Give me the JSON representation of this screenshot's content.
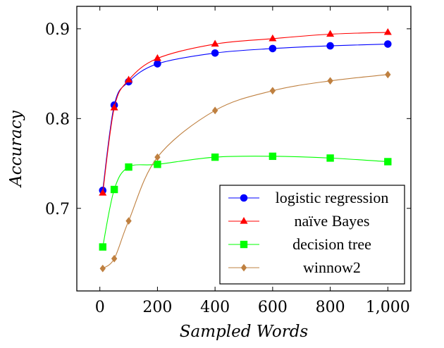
{
  "chart_data": {
    "type": "line",
    "xlabel": "Sampled Words",
    "ylabel": "Accuracy",
    "xlim": [
      -80,
      1080
    ],
    "ylim": [
      0.608,
      0.925
    ],
    "x_ticks": [
      0,
      200,
      400,
      600,
      800,
      1000
    ],
    "x_tick_labels": [
      "0",
      "200",
      "400",
      "600",
      "800",
      "1,000"
    ],
    "y_ticks": [
      0.7,
      0.8,
      0.9
    ],
    "y_tick_labels": [
      "0.7",
      "0.8",
      "0.9"
    ],
    "grid": false,
    "legend_position": "bottom-right",
    "series": [
      {
        "name": "logistic regression",
        "color": "#0000ff",
        "marker": "circle",
        "x": [
          10,
          50,
          100,
          200,
          400,
          600,
          800,
          1000
        ],
        "y": [
          0.72,
          0.815,
          0.841,
          0.861,
          0.873,
          0.878,
          0.881,
          0.883
        ]
      },
      {
        "name": "naïve Bayes",
        "color": "#ff0000",
        "marker": "triangle",
        "x": [
          10,
          50,
          100,
          200,
          400,
          600,
          800,
          1000
        ],
        "y": [
          0.717,
          0.812,
          0.843,
          0.867,
          0.883,
          0.889,
          0.894,
          0.896
        ]
      },
      {
        "name": "decision tree",
        "color": "#00ff00",
        "marker": "square",
        "x": [
          10,
          50,
          100,
          200,
          400,
          600,
          800,
          1000
        ],
        "y": [
          0.657,
          0.721,
          0.746,
          0.749,
          0.757,
          0.758,
          0.756,
          0.752
        ]
      },
      {
        "name": "winnow2",
        "color": "#bf8040",
        "marker": "diamond",
        "x": [
          10,
          50,
          100,
          200,
          400,
          600,
          800,
          1000
        ],
        "y": [
          0.633,
          0.644,
          0.686,
          0.757,
          0.809,
          0.831,
          0.842,
          0.849
        ]
      }
    ]
  }
}
